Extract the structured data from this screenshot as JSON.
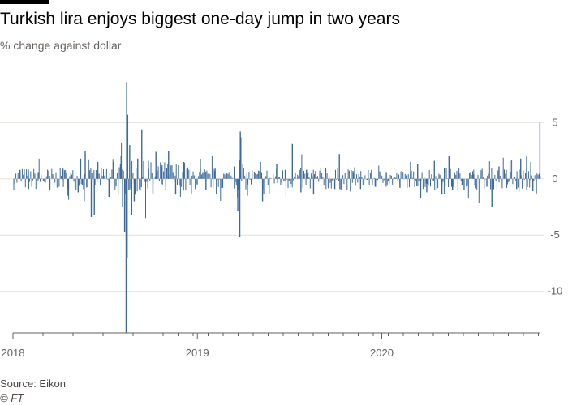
{
  "header": {
    "title": "Turkish lira enjoys biggest one-day jump in two years",
    "subtitle": "% change against dollar"
  },
  "footer": {
    "source": "Source: Eikon",
    "credit": "© FT"
  },
  "colors": {
    "series": "#3e6a9a",
    "grid": "#e6e0da",
    "axis": "#66605c"
  },
  "chart_data": {
    "type": "bar",
    "title": "Turkish lira enjoys biggest one-day jump in two years",
    "subtitle": "% change against dollar",
    "x_start": "2018-01-01",
    "x_end": "2020-11-10",
    "x_ticks": [
      "2018",
      "2019",
      "2020"
    ],
    "y_ticks": [
      5,
      0,
      -5,
      -10
    ],
    "ylim": [
      -13.7,
      8.7
    ],
    "y_axis_position": "right",
    "grid": true,
    "series": [
      {
        "values_note": "daily % change (representative trading days)",
        "points": [
          [
            "2018-01-15",
            0.8
          ],
          [
            "2018-02-01",
            -0.9
          ],
          [
            "2018-02-20",
            0.6
          ],
          [
            "2018-03-15",
            -1.0
          ],
          [
            "2018-04-10",
            0.9
          ],
          [
            "2018-04-20",
            -1.5
          ],
          [
            "2018-05-10",
            -1.2
          ],
          [
            "2018-05-15",
            1.8
          ],
          [
            "2018-05-22",
            -2.0
          ],
          [
            "2018-05-24",
            2.5
          ],
          [
            "2018-06-05",
            -3.4
          ],
          [
            "2018-06-11",
            -3.2
          ],
          [
            "2018-06-18",
            1.5
          ],
          [
            "2018-07-10",
            -1.6
          ],
          [
            "2018-07-19",
            1.5
          ],
          [
            "2018-08-03",
            2.0
          ],
          [
            "2018-08-06",
            -2.5
          ],
          [
            "2018-08-10",
            -4.7
          ],
          [
            "2018-08-13",
            -13.7
          ],
          [
            "2018-08-14",
            8.6
          ],
          [
            "2018-08-15",
            -7.0
          ],
          [
            "2018-08-16",
            5.7
          ],
          [
            "2018-08-20",
            3.0
          ],
          [
            "2018-08-24",
            -3.2
          ],
          [
            "2018-08-29",
            -2.0
          ],
          [
            "2018-09-05",
            1.8
          ],
          [
            "2018-09-13",
            4.4
          ],
          [
            "2018-09-26",
            1.6
          ],
          [
            "2018-10-05",
            -1.3
          ],
          [
            "2018-10-11",
            2.4
          ],
          [
            "2018-10-23",
            1.2
          ],
          [
            "2018-11-05",
            2.5
          ],
          [
            "2018-11-19",
            -1.4
          ],
          [
            "2018-12-05",
            1.5
          ],
          [
            "2018-12-20",
            -1.3
          ],
          [
            "2019-01-07",
            0.9
          ],
          [
            "2019-01-18",
            -1.0
          ],
          [
            "2019-02-05",
            0.7
          ],
          [
            "2019-02-20",
            -0.8
          ],
          [
            "2019-03-15",
            1.1
          ],
          [
            "2019-03-22",
            -2.9
          ],
          [
            "2019-03-26",
            -5.2
          ],
          [
            "2019-03-27",
            4.2
          ],
          [
            "2019-03-28",
            3.7
          ],
          [
            "2019-04-10",
            -1.5
          ],
          [
            "2019-05-06",
            1.5
          ],
          [
            "2019-05-10",
            -2.0
          ],
          [
            "2019-05-23",
            -1.3
          ],
          [
            "2019-06-07",
            1.3
          ],
          [
            "2019-06-24",
            0.8
          ],
          [
            "2019-07-08",
            3.1
          ],
          [
            "2019-07-25",
            -1.2
          ],
          [
            "2019-08-05",
            0.8
          ],
          [
            "2019-08-19",
            -1.4
          ],
          [
            "2019-09-12",
            1.0
          ],
          [
            "2019-09-30",
            -0.9
          ],
          [
            "2019-10-09",
            2.2
          ],
          [
            "2019-10-14",
            -1.0
          ],
          [
            "2019-11-05",
            0.7
          ],
          [
            "2019-11-20",
            -0.9
          ],
          [
            "2019-12-05",
            0.8
          ],
          [
            "2019-12-19",
            -0.7
          ],
          [
            "2020-01-10",
            0.6
          ],
          [
            "2020-02-06",
            -0.8
          ],
          [
            "2020-02-27",
            0.5
          ],
          [
            "2020-03-12",
            1.3
          ],
          [
            "2020-03-18",
            -1.7
          ],
          [
            "2020-03-30",
            -1.2
          ],
          [
            "2020-04-14",
            1.6
          ],
          [
            "2020-04-29",
            -1.4
          ],
          [
            "2020-05-04",
            1.0
          ],
          [
            "2020-05-13",
            2.0
          ],
          [
            "2020-05-20",
            -1.0
          ],
          [
            "2020-06-08",
            -0.6
          ],
          [
            "2020-07-01",
            0.4
          ],
          [
            "2020-07-27",
            -0.7
          ],
          [
            "2020-08-06",
            -2.5
          ],
          [
            "2020-08-20",
            1.1
          ],
          [
            "2020-09-04",
            -0.8
          ],
          [
            "2020-09-11",
            1.6
          ],
          [
            "2020-09-24",
            -0.9
          ],
          [
            "2020-10-02",
            1.8
          ],
          [
            "2020-10-14",
            -1.0
          ],
          [
            "2020-10-22",
            1.5
          ],
          [
            "2020-10-26",
            -1.1
          ],
          [
            "2020-11-02",
            -1.3
          ],
          [
            "2020-11-09",
            5.0
          ]
        ]
      }
    ]
  }
}
